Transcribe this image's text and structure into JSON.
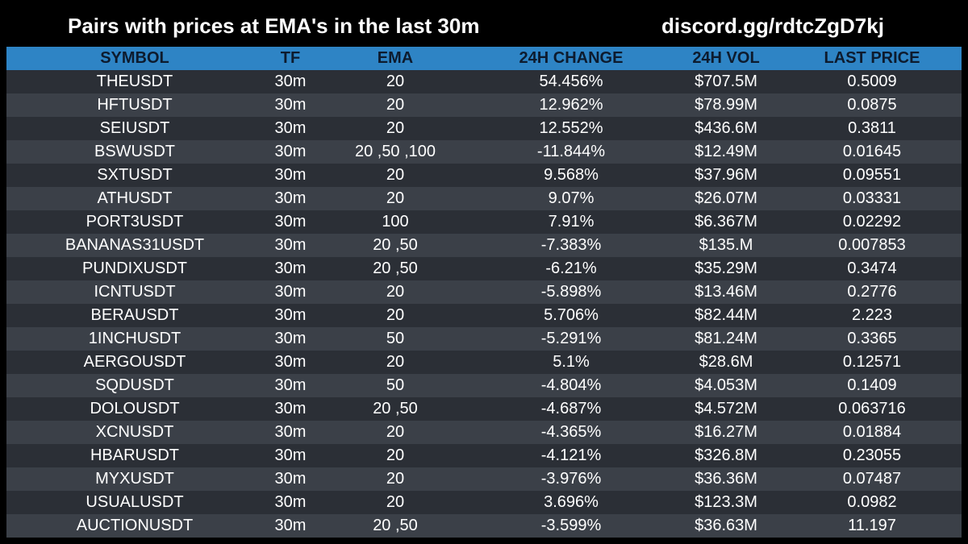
{
  "header": {
    "title": "Pairs with prices at EMA's in the last 30m",
    "link": "discord.gg/rdtcZgD7kj"
  },
  "table": {
    "columns": [
      "SYMBOL",
      "TF",
      "EMA",
      "24H CHANGE",
      "24H VOL",
      "LAST PRICE"
    ],
    "rows": [
      [
        "THEUSDT",
        "30m",
        "20",
        "54.456%",
        "$707.5M",
        "0.5009"
      ],
      [
        "HFTUSDT",
        "30m",
        "20",
        "12.962%",
        "$78.99M",
        "0.0875"
      ],
      [
        "SEIUSDT",
        "30m",
        "20",
        "12.552%",
        "$436.6M",
        "0.3811"
      ],
      [
        "BSWUSDT",
        "30m",
        "20 ,50 ,100",
        "-11.844%",
        "$12.49M",
        "0.01645"
      ],
      [
        "SXTUSDT",
        "30m",
        "20",
        "9.568%",
        "$37.96M",
        "0.09551"
      ],
      [
        "ATHUSDT",
        "30m",
        "20",
        "9.07%",
        "$26.07M",
        "0.03331"
      ],
      [
        "PORT3USDT",
        "30m",
        "100",
        "7.91%",
        "$6.367M",
        "0.02292"
      ],
      [
        "BANANAS31USDT",
        "30m",
        "20 ,50",
        "-7.383%",
        "$135.M",
        "0.007853"
      ],
      [
        "PUNDIXUSDT",
        "30m",
        "20 ,50",
        "-6.21%",
        "$35.29M",
        "0.3474"
      ],
      [
        "ICNTUSDT",
        "30m",
        "20",
        "-5.898%",
        "$13.46M",
        "0.2776"
      ],
      [
        "BERAUSDT",
        "30m",
        "20",
        "5.706%",
        "$82.44M",
        "2.223"
      ],
      [
        "1INCHUSDT",
        "30m",
        "50",
        "-5.291%",
        "$81.24M",
        "0.3365"
      ],
      [
        "AERGOUSDT",
        "30m",
        "20",
        "5.1%",
        "$28.6M",
        "0.12571"
      ],
      [
        "SQDUSDT",
        "30m",
        "50",
        "-4.804%",
        "$4.053M",
        "0.1409"
      ],
      [
        "DOLOUSDT",
        "30m",
        "20 ,50",
        "-4.687%",
        "$4.572M",
        "0.063716"
      ],
      [
        "XCNUSDT",
        "30m",
        "20",
        "-4.365%",
        "$16.27M",
        "0.01884"
      ],
      [
        "HBARUSDT",
        "30m",
        "20",
        "-4.121%",
        "$326.8M",
        "0.23055"
      ],
      [
        "MYXUSDT",
        "30m",
        "20",
        "-3.976%",
        "$36.36M",
        "0.07487"
      ],
      [
        "USUALUSDT",
        "30m",
        "20",
        "3.696%",
        "$123.3M",
        "0.0982"
      ],
      [
        "AUCTIONUSDT",
        "30m",
        "20 ,50",
        "-3.599%",
        "$36.63M",
        "11.197"
      ]
    ]
  },
  "colors": {
    "background": "#000000",
    "header_row": "#2e84c5",
    "row_dark": "#2b2f36",
    "row_light": "#3b4048",
    "text": "#ffffff"
  }
}
